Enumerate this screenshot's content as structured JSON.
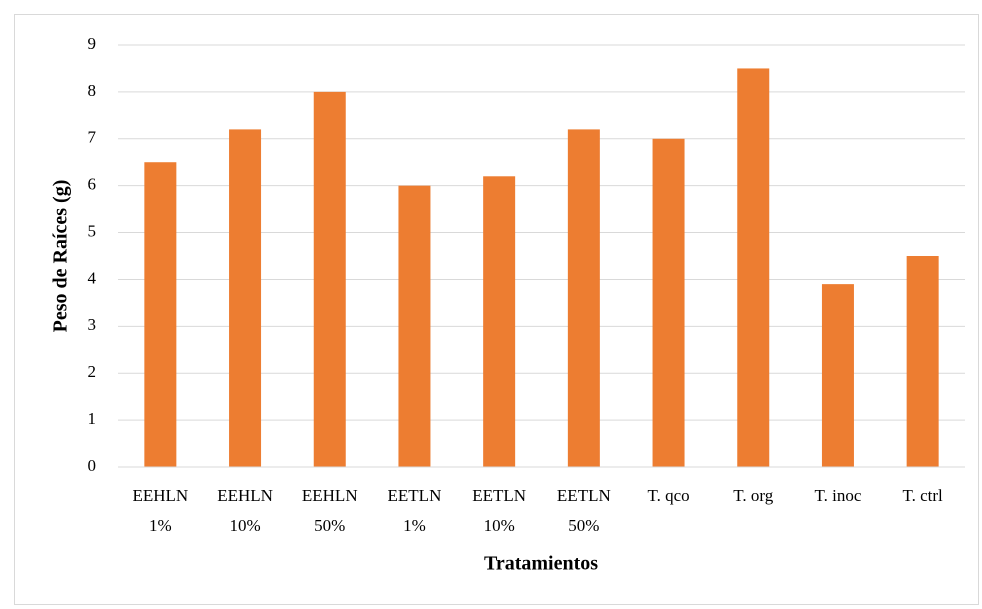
{
  "chart_data": {
    "type": "bar",
    "x_label": "Tratamientos",
    "y_label": "Peso de Raíces (g)",
    "categories": [
      [
        "EEHLN",
        "1%"
      ],
      [
        "EEHLN",
        "10%"
      ],
      [
        "EEHLN",
        "50%"
      ],
      [
        "EETLN",
        "1%"
      ],
      [
        "EETLN",
        "10%"
      ],
      [
        "EETLN",
        "50%"
      ],
      [
        "T. qco"
      ],
      [
        "T. org"
      ],
      [
        "T. inoc"
      ],
      [
        "T. ctrl"
      ]
    ],
    "values": [
      6.5,
      7.2,
      8.0,
      6.0,
      6.2,
      7.2,
      7.0,
      8.5,
      3.9,
      4.5
    ],
    "color": "#ed7d31",
    "ylim": [
      0,
      9
    ],
    "yticks": [
      0,
      1,
      2,
      3,
      4,
      5,
      6,
      7,
      8,
      9
    ],
    "grid": true
  }
}
